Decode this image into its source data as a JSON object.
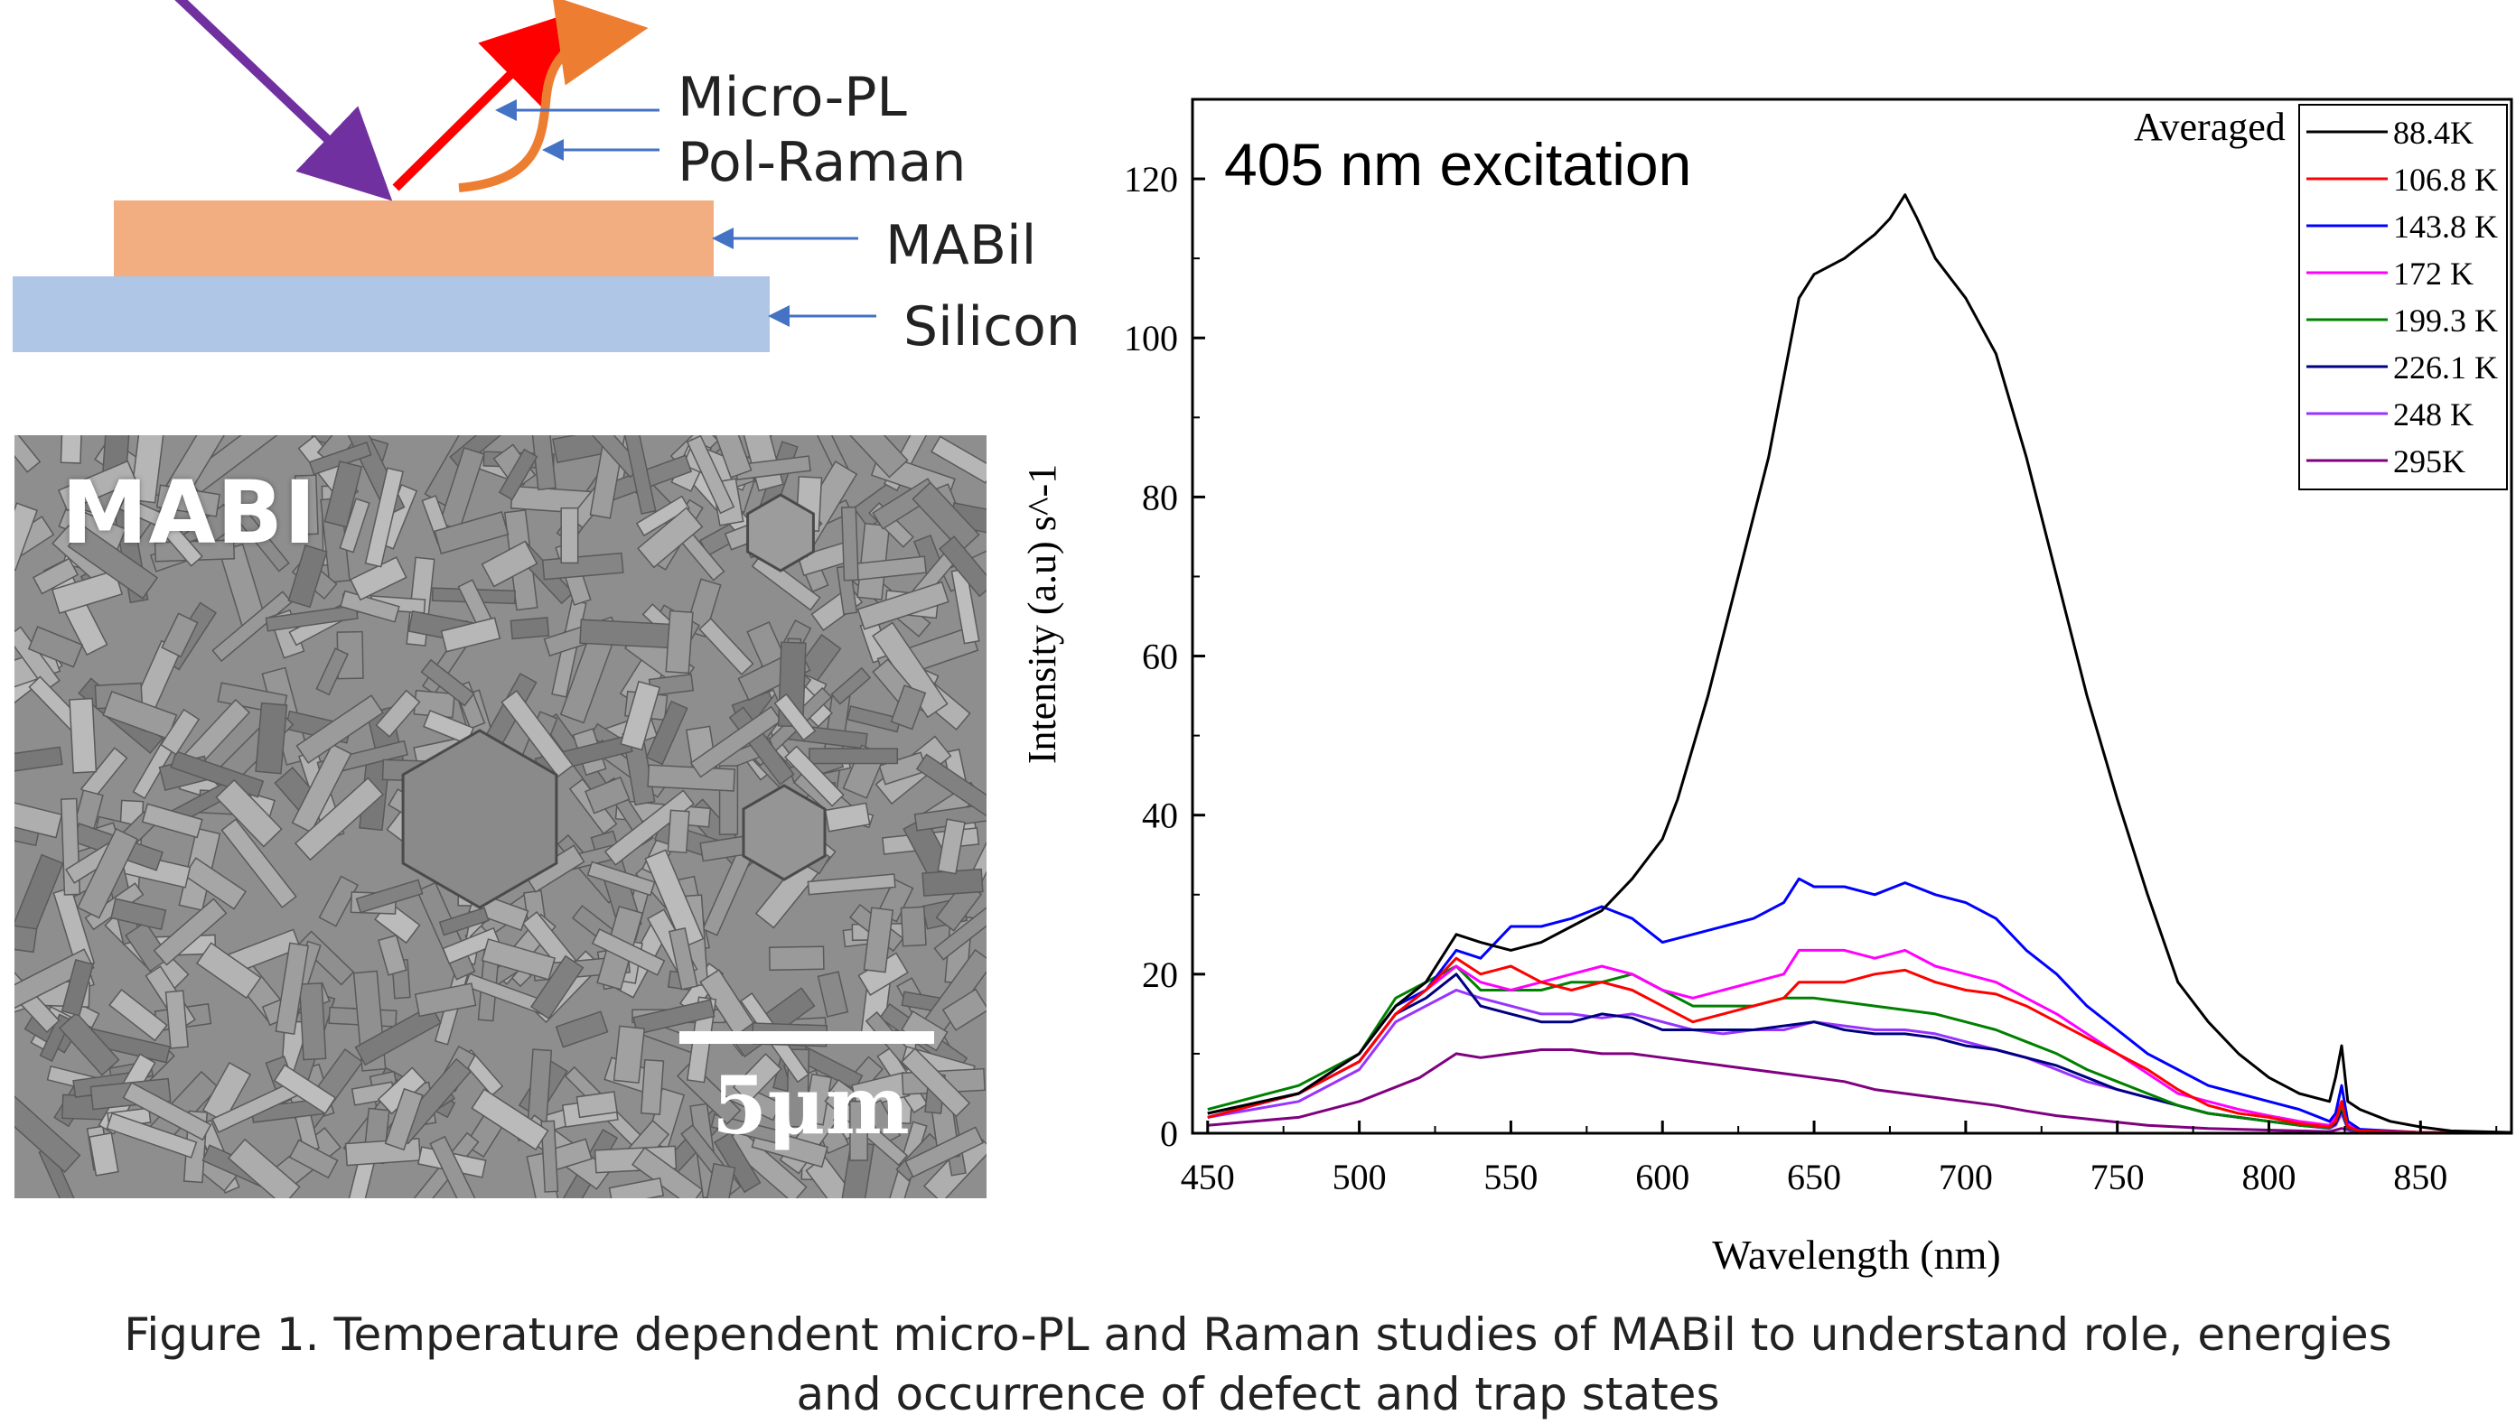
{
  "schematic": {
    "labels": {
      "micro_pl": "Micro-PL",
      "pol_raman": "Pol-Raman",
      "mabil": "MABil",
      "silicon": "Silicon"
    },
    "colors": {
      "mabil_layer": "#f2ad80",
      "silicon_layer": "#b0c6e6",
      "incident_arrow": "#7030a0",
      "pl_arrow": "#ff0000",
      "raman_arrow": "#ed7d31",
      "pointer_arrows": "#4472c4"
    }
  },
  "sem": {
    "label": "MABI",
    "scale_bar": "5μm"
  },
  "chart_data": {
    "type": "line",
    "annotation": "405 nm excitation",
    "legend_title": "Averaged",
    "legend_position": "top-right",
    "xlabel": "Wavelength (nm)",
    "ylabel": "Intensity (a.u) s^-1",
    "xlim": [
      445,
      880
    ],
    "ylim": [
      0,
      130
    ],
    "xticks": [
      450,
      500,
      550,
      600,
      650,
      700,
      750,
      800,
      850
    ],
    "yticks": [
      0,
      20,
      40,
      60,
      80,
      100,
      120
    ],
    "grid": false,
    "series": [
      {
        "name": "88.4K",
        "color": "#000000",
        "x": [
          450,
          480,
          500,
          512,
          522,
          532,
          540,
          550,
          560,
          570,
          580,
          590,
          600,
          605,
          615,
          625,
          635,
          640,
          645,
          650,
          660,
          670,
          675,
          680,
          684,
          690,
          700,
          710,
          720,
          730,
          740,
          750,
          760,
          770,
          780,
          790,
          800,
          810,
          820,
          822,
          824,
          826,
          830,
          840,
          850,
          860,
          880
        ],
        "y": [
          2.5,
          5,
          10,
          16,
          19,
          25,
          24,
          23,
          24,
          26,
          28,
          32,
          37,
          42,
          55,
          70,
          85,
          95,
          105,
          108,
          110,
          113,
          115,
          118,
          115,
          110,
          105,
          98,
          85,
          70,
          55,
          42,
          30,
          19,
          14,
          10,
          7,
          5,
          4,
          7,
          11,
          4,
          3,
          1.5,
          0.8,
          0.3,
          0.1
        ]
      },
      {
        "name": "106.8 K",
        "color": "#ff0000",
        "x": [
          450,
          480,
          500,
          512,
          522,
          532,
          540,
          550,
          560,
          570,
          580,
          590,
          600,
          610,
          620,
          630,
          640,
          645,
          650,
          660,
          670,
          680,
          690,
          700,
          710,
          720,
          730,
          740,
          750,
          760,
          770,
          780,
          790,
          800,
          810,
          820,
          822,
          824,
          826,
          830,
          840,
          850,
          880
        ],
        "y": [
          2,
          5,
          9,
          15,
          18,
          22,
          20,
          21,
          19,
          18,
          19,
          18,
          16,
          14,
          15,
          16,
          17,
          19,
          19,
          19,
          20,
          20.5,
          19,
          18,
          17.5,
          16,
          14,
          12,
          10,
          8,
          5.5,
          3.5,
          2.5,
          2,
          1.2,
          0.8,
          1.5,
          4,
          0.8,
          0.3,
          0.2,
          0.1,
          0.05
        ]
      },
      {
        "name": "143.8 K",
        "color": "#0000ff",
        "x": [
          450,
          480,
          500,
          512,
          522,
          532,
          540,
          550,
          560,
          570,
          580,
          590,
          600,
          610,
          620,
          630,
          640,
          645,
          650,
          660,
          670,
          680,
          690,
          700,
          710,
          720,
          730,
          740,
          750,
          760,
          770,
          780,
          790,
          800,
          810,
          820,
          822,
          824,
          826,
          830,
          840,
          850,
          880
        ],
        "y": [
          2,
          5,
          10,
          16,
          18,
          23,
          22,
          26,
          26,
          27,
          28.5,
          27,
          24,
          25,
          26,
          27,
          29,
          32,
          31,
          31,
          30,
          31.5,
          30,
          29,
          27,
          23,
          20,
          16,
          13,
          10,
          8,
          6,
          5,
          4,
          3,
          1.5,
          2.5,
          6,
          1.5,
          0.5,
          0.3,
          0.1,
          0.05
        ]
      },
      {
        "name": "172 K",
        "color": "#ff00ff",
        "x": [
          450,
          480,
          500,
          512,
          522,
          532,
          540,
          550,
          560,
          570,
          580,
          590,
          600,
          610,
          620,
          630,
          640,
          645,
          650,
          660,
          670,
          680,
          690,
          700,
          710,
          720,
          730,
          740,
          750,
          760,
          770,
          780,
          790,
          800,
          810,
          820,
          822,
          824,
          826,
          830,
          840,
          850,
          880
        ],
        "y": [
          2,
          5,
          9,
          15,
          18,
          21,
          19,
          18,
          19,
          20,
          21,
          20,
          18,
          17,
          18,
          19,
          20,
          23,
          23,
          23,
          22,
          23,
          21,
          20,
          19,
          17,
          15,
          12.5,
          10,
          7.5,
          5,
          4,
          3,
          2.2,
          1.5,
          1,
          2,
          4,
          1,
          0.4,
          0.2,
          0.1,
          0.05
        ]
      },
      {
        "name": "199.3 K",
        "color": "#008000",
        "x": [
          450,
          480,
          500,
          512,
          522,
          532,
          540,
          550,
          560,
          570,
          580,
          590,
          600,
          610,
          620,
          630,
          640,
          645,
          650,
          660,
          670,
          680,
          690,
          700,
          710,
          720,
          730,
          740,
          750,
          760,
          770,
          780,
          790,
          800,
          810,
          820,
          822,
          824,
          826,
          830,
          840,
          850,
          880
        ],
        "y": [
          3,
          6,
          10,
          17,
          19,
          21,
          18,
          18,
          18,
          19,
          19,
          20,
          18,
          16,
          16,
          16,
          17,
          17,
          17,
          16.5,
          16,
          15.5,
          15,
          14,
          13,
          11.5,
          10,
          8,
          6.5,
          5,
          3.5,
          2.5,
          2,
          1.5,
          1,
          0.7,
          1.5,
          3.5,
          0.7,
          0.3,
          0.2,
          0.1,
          0.05
        ]
      },
      {
        "name": "226.1 K",
        "color": "#000080",
        "x": [
          450,
          480,
          500,
          512,
          522,
          532,
          540,
          550,
          560,
          570,
          580,
          590,
          600,
          610,
          620,
          630,
          640,
          650,
          660,
          670,
          680,
          690,
          700,
          710,
          720,
          730,
          740,
          750,
          760,
          770,
          780,
          790,
          800,
          810,
          820,
          822,
          824,
          826,
          830,
          840,
          850,
          880
        ],
        "y": [
          2.5,
          5,
          9,
          15,
          17,
          20,
          16,
          15,
          14,
          14,
          15,
          14.5,
          13,
          13,
          13,
          13,
          13.5,
          14,
          13,
          12.5,
          12.5,
          12,
          11,
          10.5,
          9.5,
          8.5,
          7,
          5.5,
          4.5,
          3.5,
          2.5,
          2,
          1.5,
          1,
          0.7,
          1.2,
          3,
          0.6,
          0.3,
          0.2,
          0.1,
          0.05
        ]
      },
      {
        "name": "248 K",
        "color": "#9933ff",
        "x": [
          450,
          480,
          500,
          512,
          522,
          532,
          540,
          550,
          560,
          570,
          580,
          590,
          600,
          610,
          620,
          630,
          640,
          650,
          660,
          670,
          680,
          690,
          700,
          710,
          720,
          730,
          740,
          750,
          760,
          770,
          780,
          790,
          800,
          810,
          820,
          822,
          824,
          826,
          830,
          840,
          850,
          880
        ],
        "y": [
          2,
          4,
          8,
          14,
          16,
          18,
          17,
          16,
          15,
          15,
          14.5,
          15,
          14,
          13,
          12.5,
          13,
          13,
          14,
          13.5,
          13,
          13,
          12.5,
          11.5,
          10.5,
          9.5,
          8,
          6.5,
          5.5,
          4.5,
          3.5,
          2.5,
          2,
          1.5,
          1,
          0.6,
          1,
          2.5,
          0.5,
          0.2,
          0.1,
          0.05,
          0.02
        ]
      },
      {
        "name": "295K",
        "color": "#800080",
        "x": [
          450,
          480,
          500,
          520,
          532,
          540,
          550,
          560,
          570,
          580,
          590,
          600,
          610,
          620,
          630,
          640,
          650,
          660,
          670,
          680,
          690,
          700,
          710,
          720,
          730,
          740,
          750,
          760,
          770,
          780,
          800,
          820,
          824,
          830,
          850,
          880
        ],
        "y": [
          1,
          2,
          4,
          7,
          10,
          9.5,
          10,
          10.5,
          10.5,
          10,
          10,
          9.5,
          9,
          8.5,
          8,
          7.5,
          7,
          6.5,
          5.5,
          5,
          4.5,
          4,
          3.5,
          2.8,
          2.2,
          1.8,
          1.4,
          1,
          0.8,
          0.6,
          0.4,
          0.2,
          0.6,
          0.1,
          0.05,
          0.02
        ]
      }
    ]
  },
  "caption": {
    "line1": "Figure 1. Temperature dependent micro-PL and Raman studies of MABil to understand role, energies",
    "line2": "and occurrence of defect and trap states"
  }
}
